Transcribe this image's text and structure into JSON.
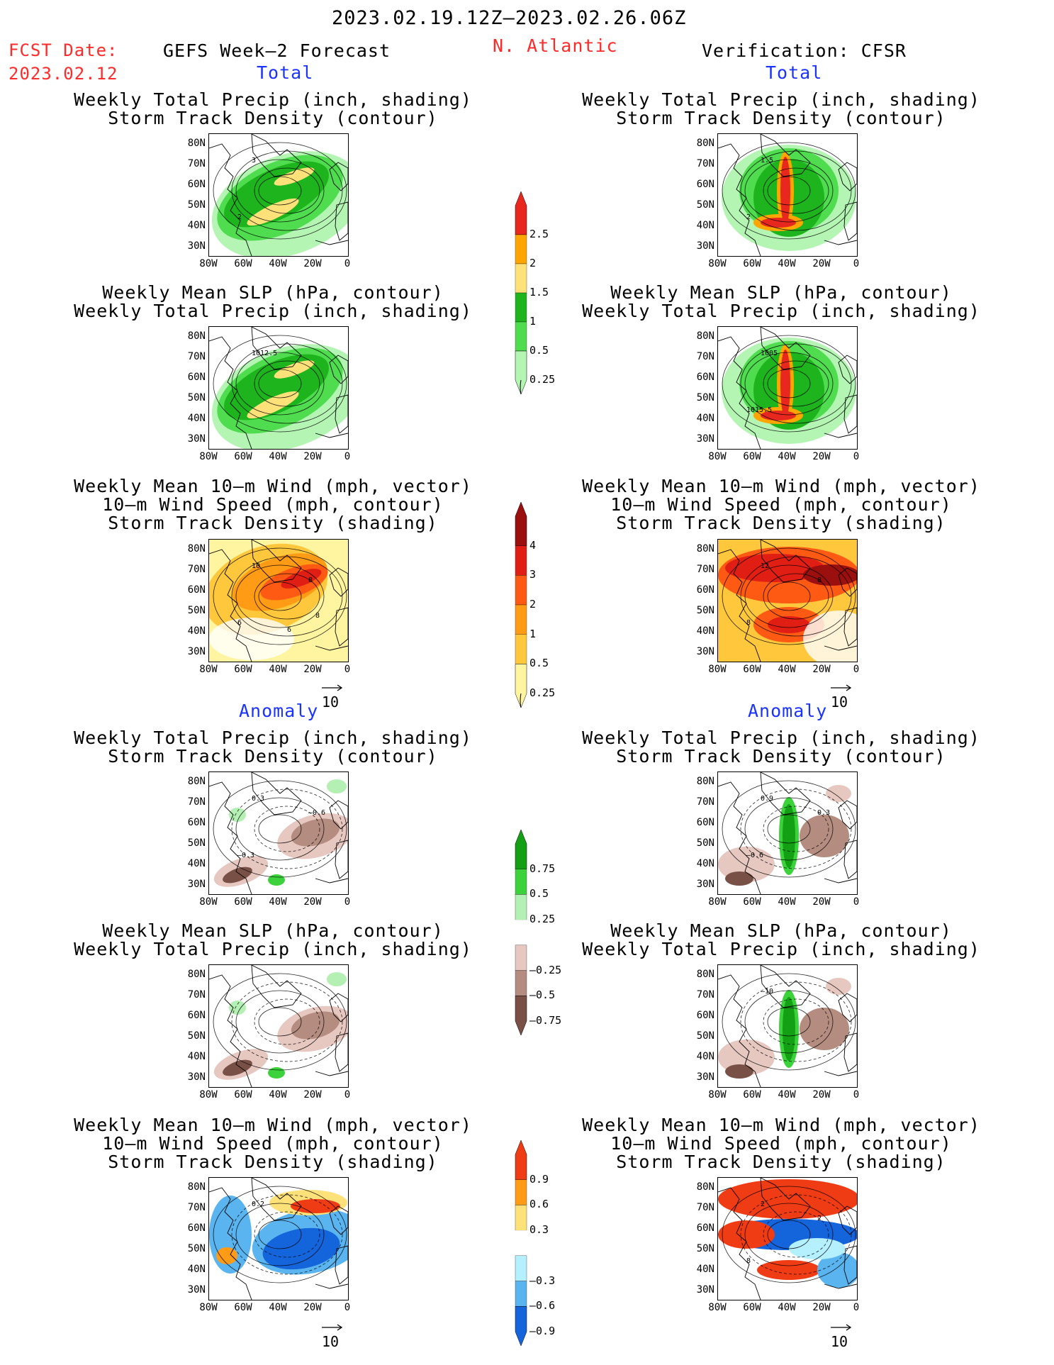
{
  "header": {
    "period": "2023.02.19.12Z–2023.02.26.06Z",
    "fcst_label": "FCST Date:",
    "fcst_date": "2023.02.12",
    "model": "GEFS Week–2 Forecast",
    "region": "N. Atlantic",
    "verification": "Verification: CFSR"
  },
  "sections": {
    "total": "Total",
    "anomaly": "Anomaly"
  },
  "panel_titles": {
    "precip_track": "Weekly Total Precip (inch, shading)\nStorm Track Density (contour)",
    "slp_precip": "Weekly Mean SLP (hPa, contour)\nWeekly Total Precip (inch, shading)",
    "wind_track": "Weekly Mean 10–m Wind (mph, vector)\n10–m Wind Speed (mph, contour)\nStorm Track Density (shading)"
  },
  "axes": {
    "lat_ticks": [
      "80N",
      "70N",
      "60N",
      "50N",
      "40N",
      "30N"
    ],
    "lon_ticks": [
      "80W",
      "60W",
      "40W",
      "20W",
      "0"
    ]
  },
  "vector_reference": "10",
  "contour_labels": {
    "fcst_total_precip": [
      "3",
      "2"
    ],
    "fcst_total_slp": [
      "1012.5"
    ],
    "fcst_total_wind": [
      "10",
      "6",
      "8",
      "6",
      "8"
    ],
    "obs_total_precip": [
      "1.5",
      "2"
    ],
    "obs_total_slp": [
      "1005",
      "1015.5"
    ],
    "obs_total_wind": [
      "12",
      "8",
      "8"
    ],
    "fcst_anom_precip": [
      "0.3",
      "–0.3",
      "–0.6"
    ],
    "fcst_anom_wind": [
      "0.2"
    ],
    "obs_anom_precip": [
      "0.9",
      "–0.6",
      "0.3"
    ],
    "obs_anom_slp": [
      "–10"
    ],
    "obs_anom_wind": [
      "2",
      "8",
      "2"
    ]
  },
  "colorbars": {
    "precip_total": {
      "labels": [
        "2.5",
        "2",
        "1.5",
        "1",
        "0.5",
        "0.25"
      ],
      "colors": [
        "#e8281e",
        "#ffa500",
        "#ffe17a",
        "#1eb41e",
        "#4fdc4f",
        "#b4f5b4"
      ]
    },
    "track_total": {
      "labels": [
        "4",
        "3",
        "2",
        "1",
        "0.5",
        "0.25"
      ],
      "colors": [
        "#9b0f0f",
        "#e01e14",
        "#ff5a14",
        "#ff9b14",
        "#ffc83c",
        "#fff5a0"
      ]
    },
    "precip_anom": {
      "labels": [
        "0.75",
        "0.5",
        "0.25",
        "–0.25",
        "–0.5",
        "–0.75"
      ],
      "colors": [
        "#14a014",
        "#3cd23c",
        "#b4f0b4",
        "#ffffff",
        "#e6c8c0",
        "#b48c80",
        "#785046"
      ]
    },
    "track_anom": {
      "labels": [
        "0.9",
        "0.6",
        "0.3",
        "–0.3",
        "–0.6",
        "–0.9"
      ],
      "colors": [
        "#f03c14",
        "#ff9b14",
        "#ffe17a",
        "#ffffff",
        "#b4f0ff",
        "#5ab4f0",
        "#1464dc"
      ]
    }
  }
}
